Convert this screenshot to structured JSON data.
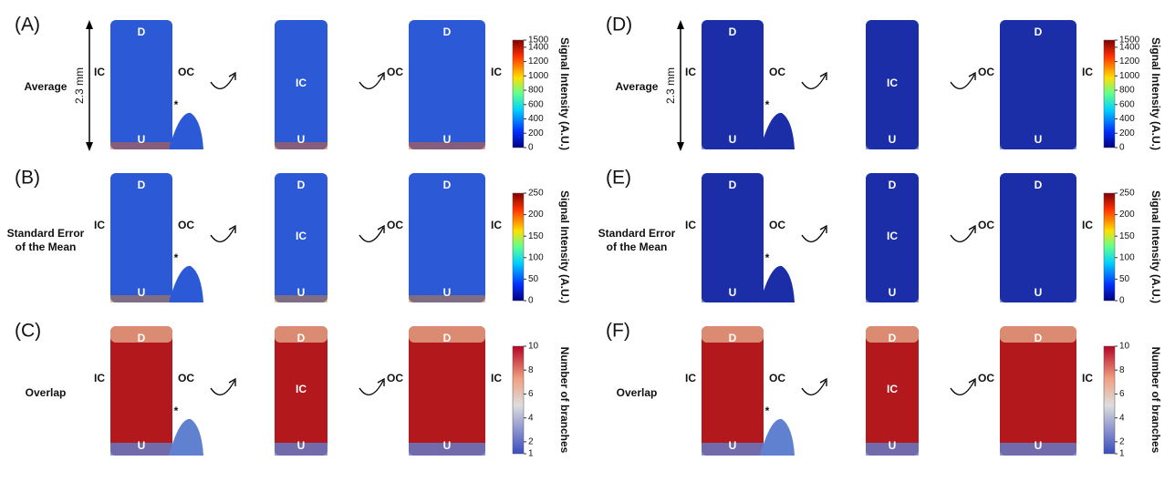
{
  "panels": [
    {
      "letter": "(A)",
      "row_label": [
        "Average"
      ],
      "scale_label": "2.3 mm",
      "views": [
        {
          "top": "D",
          "left": "IC",
          "right": "OC",
          "bottom": "U",
          "star": "*"
        },
        {
          "center": "IC",
          "bottom": "U"
        },
        {
          "top": "D",
          "left": "OC",
          "right": "IC",
          "bottom": "U"
        }
      ],
      "colorbar": {
        "title": "Signal Intensity (A.U.)",
        "colormap": "jet",
        "ticks": [
          0,
          200,
          400,
          600,
          800,
          1000,
          1200,
          1400,
          1500
        ]
      }
    },
    {
      "letter": "(B)",
      "row_label": [
        "Standard Error",
        "of the Mean"
      ],
      "views": [
        {
          "top": "D",
          "left": "IC",
          "right": "OC",
          "bottom": "U",
          "star": "*"
        },
        {
          "top": "D",
          "center": "IC",
          "bottom": "U"
        },
        {
          "top": "D",
          "left": "OC",
          "right": "IC",
          "bottom": "U"
        }
      ],
      "colorbar": {
        "title": "Signal Intensity (A.U.)",
        "colormap": "jet",
        "ticks": [
          0,
          50,
          100,
          150,
          200,
          250
        ]
      }
    },
    {
      "letter": "(C)",
      "row_label": [
        "Overlap"
      ],
      "views": [
        {
          "top": "D",
          "left": "IC",
          "right": "OC",
          "bottom": "U",
          "star": "*"
        },
        {
          "top": "D",
          "center": "IC",
          "bottom": "U"
        },
        {
          "top": "D",
          "left": "OC",
          "right": "IC",
          "bottom": "U"
        }
      ],
      "colorbar": {
        "title": "Number of branches",
        "colormap": "coolwarm",
        "ticks": [
          1,
          2,
          4,
          6,
          8,
          10
        ]
      }
    },
    {
      "letter": "(D)",
      "row_label": [
        "Average"
      ],
      "scale_label": "2.3 mm",
      "views": [
        {
          "top": "D",
          "left": "IC",
          "right": "OC",
          "bottom": "U",
          "star": "*"
        },
        {
          "center": "IC",
          "bottom": "U"
        },
        {
          "top": "D",
          "left": "OC",
          "right": "IC",
          "bottom": "U"
        }
      ],
      "colorbar": {
        "title": "Signal Intensity (A.U.)",
        "colormap": "jet",
        "ticks": [
          0,
          200,
          400,
          600,
          800,
          1000,
          1200,
          1400,
          1500
        ]
      }
    },
    {
      "letter": "(E)",
      "row_label": [
        "Standard Error",
        "of the Mean"
      ],
      "views": [
        {
          "top": "D",
          "left": "IC",
          "right": "OC",
          "bottom": "U",
          "star": "*"
        },
        {
          "top": "D",
          "center": "IC",
          "bottom": "U"
        },
        {
          "top": "D",
          "left": "OC",
          "right": "IC",
          "bottom": "U"
        }
      ],
      "colorbar": {
        "title": "Signal Intensity (A.U.)",
        "colormap": "jet",
        "ticks": [
          0,
          50,
          100,
          150,
          200,
          250
        ]
      }
    },
    {
      "letter": "(F)",
      "row_label": [
        "Overlap"
      ],
      "views": [
        {
          "top": "D",
          "left": "IC",
          "right": "OC",
          "bottom": "U",
          "star": "*"
        },
        {
          "top": "D",
          "center": "IC",
          "bottom": "U"
        },
        {
          "top": "D",
          "left": "OC",
          "right": "IC",
          "bottom": "U"
        }
      ],
      "colorbar": {
        "title": "Number of branches",
        "colormap": "coolwarm",
        "ticks": [
          1,
          2,
          4,
          6,
          8,
          10
        ]
      }
    }
  ]
}
